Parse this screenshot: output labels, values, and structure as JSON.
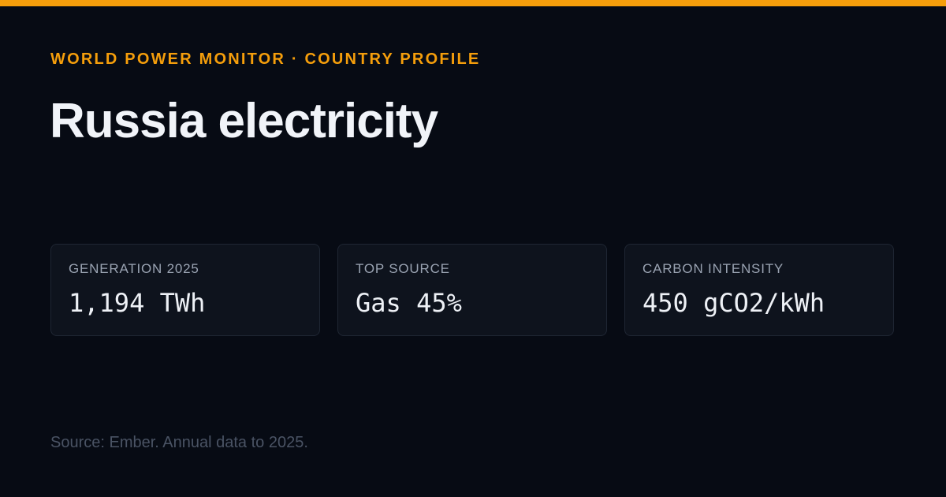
{
  "header": {
    "kicker": "WORLD POWER MONITOR · COUNTRY PROFILE",
    "title": "Russia electricity"
  },
  "cards": [
    {
      "label": "GENERATION 2025",
      "value": "1,194 TWh"
    },
    {
      "label": "TOP SOURCE",
      "value": "Gas 45%"
    },
    {
      "label": "CARBON INTENSITY",
      "value": "450 gCO2/kWh"
    }
  ],
  "footer": {
    "source": "Source: Ember. Annual data to 2025."
  }
}
